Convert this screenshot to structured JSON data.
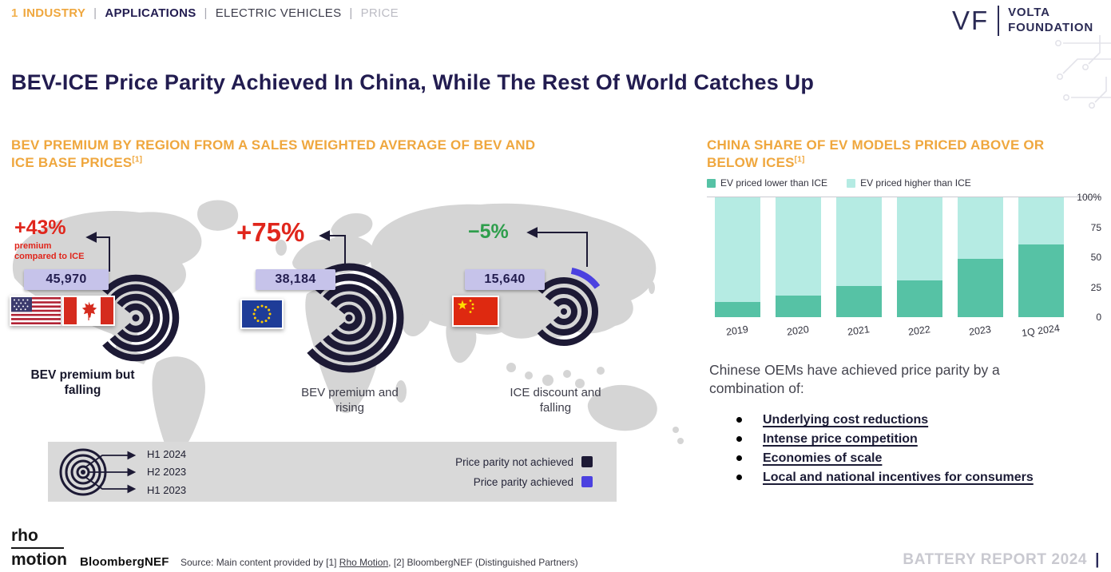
{
  "colors": {
    "accent_orange": "#EFA73E",
    "navy": "#221C50",
    "ink": "#1D1A35",
    "red": "#E0261C",
    "green": "#2E9E4C",
    "lavender_box": "#C6C3EA",
    "teal": "#56C2A5",
    "light_cyan": "#B5EBE3",
    "parity_achieved_blue": "#4B41E0",
    "map_gray": "#D5D5D5",
    "legend_bg": "#D9D9D9"
  },
  "header": {
    "breadcrumb": {
      "number": "1",
      "separator": "|",
      "items": [
        {
          "label": "INDUSTRY"
        },
        {
          "label": "APPLICATIONS"
        },
        {
          "label": "ELECTRIC VEHICLES"
        },
        {
          "label": "PRICE"
        }
      ]
    },
    "logo": {
      "monogram": "VF",
      "line1": "VOLTA",
      "line2": "FOUNDATION"
    }
  },
  "title": "BEV-ICE Price Parity Achieved In China, While The Rest Of World Catches Up",
  "left_panel": {
    "heading": "BEV PREMIUM BY REGION FROM A SALES WEIGHTED AVERAGE OF BEV AND ICE BASE PRICES",
    "heading_note": "[1]",
    "regions": [
      {
        "pct": "+43%",
        "pct_note": "premium compared to ICE",
        "price": "45,970",
        "caption": "BEV premium but falling",
        "flags": [
          "us-flag",
          "canada-flag"
        ]
      },
      {
        "pct": "+75%",
        "price": "38,184",
        "caption": "BEV premium and rising",
        "flags": [
          "eu-flag"
        ]
      },
      {
        "pct": "−5%",
        "price": "15,640",
        "caption": "ICE discount and falling",
        "flags": [
          "china-flag"
        ]
      }
    ],
    "legend": {
      "years": [
        "H1 2024",
        "H2 2023",
        "H1 2023"
      ],
      "items": [
        {
          "label": "Price parity not achieved",
          "color": "#1D1A35"
        },
        {
          "label": "Price parity achieved",
          "color": "#4B41E0"
        }
      ]
    }
  },
  "right_panel": {
    "heading": "CHINA SHARE OF EV MODELS PRICED ABOVE OR BELOW ICEs",
    "heading_note": "[1]",
    "paragraph": "Chinese OEMs have achieved price parity by a combination of:",
    "bullets": [
      "Underlying cost reductions",
      "Intense price competition",
      "Economies of scale",
      "Local and national incentives for consumers"
    ]
  },
  "chart_data": {
    "type": "bar",
    "stacked": true,
    "title": "China share of EV models priced above or below ICEs",
    "categories": [
      "2019",
      "2020",
      "2021",
      "2022",
      "2023",
      "1Q 2024"
    ],
    "series": [
      {
        "name": "EV priced lower than ICE",
        "color": "#56C2A5",
        "values": [
          13,
          18,
          26,
          31,
          49,
          61
        ]
      },
      {
        "name": "EV priced higher than ICE",
        "color": "#B5EBE3",
        "values": [
          87,
          82,
          74,
          69,
          51,
          39
        ]
      }
    ],
    "ylim": [
      0,
      100
    ],
    "yticks": [
      {
        "label": "100%",
        "value": 100
      },
      {
        "label": "75",
        "value": 75
      },
      {
        "label": "50",
        "value": 50
      },
      {
        "label": "25",
        "value": 25
      },
      {
        "label": "0",
        "value": 0
      }
    ],
    "legend_position": "top",
    "grid": false
  },
  "footer": {
    "partner1": {
      "line1": "rho",
      "line2": "motion"
    },
    "partner2": "BloombergNEF",
    "source_prefix": "Source: Main content provided by [1] ",
    "source_link": "Rho Motion",
    "source_suffix": ", [2] BloombergNEF (Distinguished Partners)",
    "report": "BATTERY REPORT 2024",
    "report_bar": "|"
  }
}
